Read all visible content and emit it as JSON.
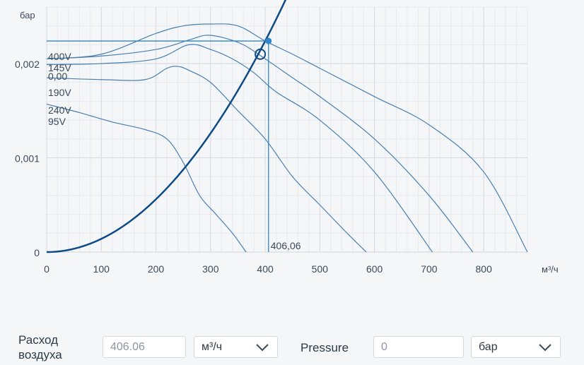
{
  "chart_data": {
    "type": "line",
    "y_unit": "бар",
    "x_unit": "м³/ч",
    "xlim": [
      0,
      880
    ],
    "ylim": [
      0,
      0.0026
    ],
    "x_ticks": [
      0,
      100,
      200,
      300,
      400,
      500,
      600,
      700,
      800
    ],
    "x_tick_labels": [
      "0",
      "100",
      "200",
      "300",
      "400",
      "500",
      "600",
      "700",
      "800"
    ],
    "y_ticks": [
      0,
      0.001,
      0.002
    ],
    "y_tick_labels": [
      "0",
      "0,001",
      "0,002"
    ],
    "grid": true,
    "series": [
      {
        "name": "400V",
        "x": [
          0,
          100,
          200,
          250,
          300,
          350,
          400,
          450,
          500,
          600,
          700,
          800,
          880
        ],
        "y": [
          0.00205,
          0.0021,
          0.00232,
          0.0024,
          0.00242,
          0.0024,
          0.00224,
          0.0021,
          0.00195,
          0.00165,
          0.00135,
          0.00085,
          0.0
        ]
      },
      {
        "name": "145V",
        "x": [
          0,
          100,
          200,
          260,
          290,
          320,
          360,
          400,
          450,
          500,
          600,
          700,
          780
        ],
        "y": [
          0.00205,
          0.00208,
          0.00215,
          0.00225,
          0.0023,
          0.00228,
          0.0022,
          0.00205,
          0.00185,
          0.00165,
          0.0012,
          0.0006,
          0.0
        ]
      },
      {
        "name": "190V",
        "x": [
          0,
          100,
          200,
          260,
          300,
          340,
          380,
          420,
          500,
          600,
          706
        ],
        "y": [
          0.00199,
          0.002,
          0.00205,
          0.0022,
          0.00215,
          0.00205,
          0.0019,
          0.0017,
          0.0014,
          0.00085,
          0.0
        ]
      },
      {
        "name": "240V",
        "x": [
          0,
          100,
          180,
          220,
          240,
          260,
          300,
          350,
          400,
          450,
          500,
          550,
          585
        ],
        "y": [
          0.00185,
          0.00183,
          0.00183,
          0.00195,
          0.00197,
          0.00193,
          0.0018,
          0.0015,
          0.0012,
          0.0008,
          0.0005,
          0.0002,
          0.0
        ]
      },
      {
        "name": "95V",
        "x": [
          0,
          60,
          120,
          180,
          220,
          250,
          280,
          310,
          340,
          365
        ],
        "y": [
          0.00157,
          0.00148,
          0.00138,
          0.0013,
          0.0012,
          0.00095,
          0.0006,
          0.0004,
          0.0002,
          0.0
        ]
      }
    ],
    "system_curve": {
      "k": 1.4e-08,
      "x_max": 440
    },
    "operating_point": {
      "x": 406.06,
      "y": 0.00224,
      "label": "406,06"
    },
    "intersection_marker": {
      "x": 391,
      "y": 0.0021
    },
    "reference_pressure_label": "0,00"
  },
  "form": {
    "airflow_label_line1": "Расход",
    "airflow_label_line2": "воздуха",
    "airflow_value": "406.06",
    "airflow_unit": "м³/ч",
    "pressure_label": "Pressure",
    "pressure_value": "0",
    "pressure_unit": "бар"
  },
  "colors": {
    "curve": "#4a7fae",
    "system_curve": "#0d4a86",
    "highlight": "#2f86c9",
    "grid_major": "#d6dbe0",
    "grid_minor": "#e7eaee"
  }
}
